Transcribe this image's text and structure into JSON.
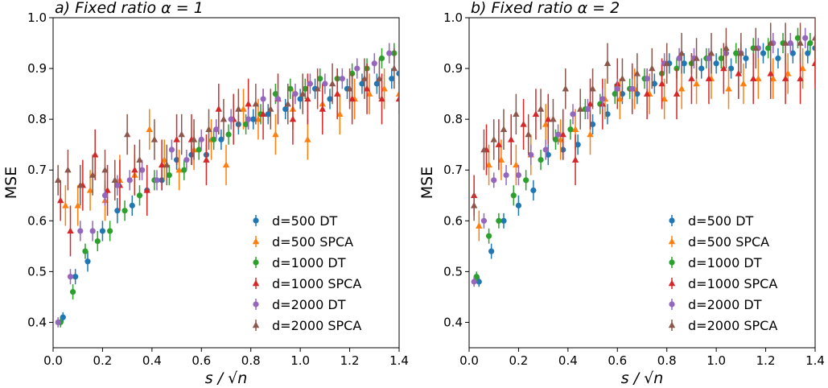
{
  "chart_data": [
    {
      "type": "scatter",
      "title": "a) Fixed ratio α = 1",
      "xlabel": "s / √n",
      "ylabel": "MSE",
      "xlim": [
        0.0,
        1.4
      ],
      "ylim": [
        0.35,
        1.0
      ],
      "xticks": [
        "0.0",
        "0.2",
        "0.4",
        "0.6",
        "0.8",
        "1.0",
        "1.2",
        "1.4"
      ],
      "yticks": [
        "0.4",
        "0.5",
        "0.6",
        "0.7",
        "0.8",
        "0.9",
        "1.0"
      ],
      "legend_position": "lower-right",
      "series": [
        {
          "name": "d=500 DT",
          "marker": "circle",
          "color": "#1f77b4",
          "x": [
            0.04,
            0.09,
            0.14,
            0.2,
            0.26,
            0.32,
            0.38,
            0.44,
            0.5,
            0.56,
            0.62,
            0.68,
            0.75,
            0.81,
            0.87,
            0.94,
            1.0,
            1.06,
            1.12,
            1.19,
            1.25,
            1.31,
            1.37,
            1.4
          ],
          "y": [
            0.41,
            0.49,
            0.52,
            0.58,
            0.62,
            0.63,
            0.66,
            0.68,
            0.72,
            0.73,
            0.73,
            0.76,
            0.79,
            0.8,
            0.81,
            0.82,
            0.84,
            0.86,
            0.84,
            0.86,
            0.87,
            0.87,
            0.88,
            0.89
          ],
          "err": [
            0.01,
            0.015,
            0.02,
            0.02,
            0.025,
            0.02,
            0.02,
            0.02,
            0.02,
            0.02,
            0.02,
            0.02,
            0.02,
            0.02,
            0.02,
            0.02,
            0.02,
            0.02,
            0.02,
            0.02,
            0.02,
            0.02,
            0.02,
            0.02
          ]
        },
        {
          "name": "d=500 SPCA",
          "marker": "triangle",
          "color": "#ff7f0e",
          "x": [
            0.05,
            0.1,
            0.15,
            0.21,
            0.27,
            0.33,
            0.39,
            0.45,
            0.51,
            0.57,
            0.64,
            0.7,
            0.77,
            0.83,
            0.9,
            0.97,
            1.03,
            1.09,
            1.16,
            1.22,
            1.28,
            1.34,
            1.4
          ],
          "y": [
            0.63,
            0.63,
            0.66,
            0.64,
            0.68,
            0.69,
            0.78,
            0.72,
            0.7,
            0.74,
            0.76,
            0.71,
            0.82,
            0.8,
            0.77,
            0.82,
            0.76,
            0.83,
            0.81,
            0.84,
            0.85,
            0.86,
            0.85
          ],
          "err": [
            0.04,
            0.04,
            0.04,
            0.04,
            0.05,
            0.04,
            0.04,
            0.04,
            0.04,
            0.04,
            0.04,
            0.04,
            0.04,
            0.04,
            0.04,
            0.04,
            0.04,
            0.04,
            0.04,
            0.04,
            0.04,
            0.04,
            0.04
          ]
        },
        {
          "name": "d=1000 DT",
          "marker": "circle",
          "color": "#2ca02c",
          "x": [
            0.03,
            0.08,
            0.13,
            0.18,
            0.23,
            0.29,
            0.35,
            0.41,
            0.47,
            0.53,
            0.59,
            0.65,
            0.71,
            0.78,
            0.84,
            0.9,
            0.96,
            1.02,
            1.08,
            1.15,
            1.21,
            1.27,
            1.33,
            1.38
          ],
          "y": [
            0.4,
            0.46,
            0.54,
            0.56,
            0.58,
            0.62,
            0.65,
            0.68,
            0.69,
            0.7,
            0.74,
            0.76,
            0.77,
            0.79,
            0.81,
            0.85,
            0.86,
            0.86,
            0.88,
            0.88,
            0.89,
            0.9,
            0.92,
            0.93
          ],
          "err": [
            0.01,
            0.015,
            0.015,
            0.02,
            0.02,
            0.02,
            0.02,
            0.02,
            0.02,
            0.02,
            0.02,
            0.02,
            0.02,
            0.02,
            0.02,
            0.02,
            0.02,
            0.02,
            0.02,
            0.02,
            0.02,
            0.02,
            0.02,
            0.02
          ]
        },
        {
          "name": "d=1000 SPCA",
          "marker": "triangle",
          "color": "#d62728",
          "x": [
            0.03,
            0.07,
            0.12,
            0.17,
            0.22,
            0.27,
            0.33,
            0.38,
            0.44,
            0.5,
            0.56,
            0.62,
            0.67,
            0.73,
            0.79,
            0.85,
            0.91,
            0.97,
            1.03,
            1.09,
            1.15,
            1.21,
            1.27,
            1.33,
            1.4
          ],
          "y": [
            0.64,
            0.58,
            0.67,
            0.73,
            0.66,
            0.67,
            0.7,
            0.66,
            0.71,
            0.76,
            0.76,
            0.72,
            0.82,
            0.8,
            0.83,
            0.81,
            0.84,
            0.8,
            0.84,
            0.82,
            0.85,
            0.84,
            0.86,
            0.84,
            0.84
          ],
          "err": [
            0.04,
            0.05,
            0.05,
            0.05,
            0.05,
            0.05,
            0.05,
            0.05,
            0.05,
            0.05,
            0.05,
            0.05,
            0.05,
            0.05,
            0.05,
            0.05,
            0.05,
            0.05,
            0.05,
            0.05,
            0.05,
            0.05,
            0.05,
            0.05,
            0.05
          ]
        },
        {
          "name": "d=2000 DT",
          "marker": "circle",
          "color": "#9467bd",
          "x": [
            0.02,
            0.07,
            0.11,
            0.16,
            0.21,
            0.26,
            0.31,
            0.36,
            0.42,
            0.48,
            0.54,
            0.6,
            0.66,
            0.72,
            0.79,
            0.85,
            0.91,
            0.98,
            1.04,
            1.1,
            1.17,
            1.23,
            1.3,
            1.36
          ],
          "y": [
            0.4,
            0.49,
            0.58,
            0.58,
            0.65,
            0.67,
            0.68,
            0.7,
            0.68,
            0.74,
            0.72,
            0.76,
            0.78,
            0.8,
            0.8,
            0.84,
            0.84,
            0.85,
            0.87,
            0.87,
            0.88,
            0.9,
            0.91,
            0.93
          ],
          "err": [
            0.01,
            0.015,
            0.02,
            0.02,
            0.02,
            0.02,
            0.02,
            0.02,
            0.02,
            0.02,
            0.02,
            0.02,
            0.02,
            0.02,
            0.02,
            0.02,
            0.02,
            0.02,
            0.02,
            0.02,
            0.02,
            0.02,
            0.02,
            0.02
          ]
        },
        {
          "name": "d=2000 SPCA",
          "marker": "triangle",
          "color": "#8c564b",
          "x": [
            0.02,
            0.06,
            0.11,
            0.16,
            0.21,
            0.25,
            0.3,
            0.35,
            0.41,
            0.46,
            0.52,
            0.57,
            0.63,
            0.69,
            0.75,
            0.82,
            0.88,
            0.95,
            1.01,
            1.07,
            1.13,
            1.2,
            1.26,
            1.32,
            1.38
          ],
          "y": [
            0.68,
            0.7,
            0.67,
            0.69,
            0.7,
            0.68,
            0.77,
            0.72,
            0.76,
            0.71,
            0.77,
            0.76,
            0.78,
            0.8,
            0.82,
            0.83,
            0.82,
            0.83,
            0.85,
            0.86,
            0.87,
            0.86,
            0.88,
            0.88,
            0.9
          ],
          "err": [
            0.03,
            0.04,
            0.04,
            0.04,
            0.04,
            0.04,
            0.04,
            0.04,
            0.04,
            0.04,
            0.04,
            0.04,
            0.04,
            0.04,
            0.04,
            0.04,
            0.04,
            0.04,
            0.04,
            0.04,
            0.04,
            0.04,
            0.04,
            0.04,
            0.04
          ]
        }
      ]
    },
    {
      "type": "scatter",
      "title": "b) Fixed ratio α = 2",
      "xlabel": "s / √n",
      "ylabel": "MSE",
      "xlim": [
        0.0,
        1.4
      ],
      "ylim": [
        0.35,
        1.0
      ],
      "xticks": [
        "0.0",
        "0.2",
        "0.4",
        "0.6",
        "0.8",
        "1.0",
        "1.2",
        "1.4"
      ],
      "yticks": [
        "0.4",
        "0.5",
        "0.6",
        "0.7",
        "0.8",
        "0.9",
        "1.0"
      ],
      "legend_position": "lower-right",
      "series": [
        {
          "name": "d=500 DT",
          "marker": "circle",
          "color": "#1f77b4",
          "x": [
            0.04,
            0.09,
            0.14,
            0.2,
            0.26,
            0.32,
            0.38,
            0.44,
            0.5,
            0.56,
            0.62,
            0.68,
            0.75,
            0.81,
            0.87,
            0.94,
            1.0,
            1.06,
            1.12,
            1.19,
            1.25,
            1.31,
            1.37,
            1.4
          ],
          "y": [
            0.48,
            0.54,
            0.6,
            0.63,
            0.66,
            0.73,
            0.74,
            0.75,
            0.79,
            0.81,
            0.85,
            0.85,
            0.87,
            0.91,
            0.91,
            0.9,
            0.91,
            0.9,
            0.92,
            0.93,
            0.92,
            0.93,
            0.93,
            0.94
          ],
          "err": [
            0.01,
            0.015,
            0.015,
            0.02,
            0.02,
            0.02,
            0.02,
            0.02,
            0.02,
            0.02,
            0.02,
            0.02,
            0.02,
            0.02,
            0.02,
            0.02,
            0.02,
            0.02,
            0.02,
            0.02,
            0.02,
            0.02,
            0.02,
            0.02
          ]
        },
        {
          "name": "d=500 SPCA",
          "marker": "triangle",
          "color": "#ff7f0e",
          "x": [
            0.04,
            0.08,
            0.13,
            0.19,
            0.25,
            0.31,
            0.37,
            0.43,
            0.49,
            0.55,
            0.61,
            0.67,
            0.73,
            0.79,
            0.86,
            0.92,
            0.98,
            1.05,
            1.11,
            1.17,
            1.23,
            1.29,
            1.35,
            1.4
          ],
          "y": [
            0.59,
            0.71,
            0.72,
            0.71,
            0.73,
            0.79,
            0.76,
            0.78,
            0.77,
            0.84,
            0.84,
            0.86,
            0.85,
            0.84,
            0.86,
            0.87,
            0.88,
            0.86,
            0.87,
            0.88,
            0.88,
            0.89,
            0.9,
            0.91
          ],
          "err": [
            0.03,
            0.04,
            0.04,
            0.04,
            0.04,
            0.04,
            0.04,
            0.04,
            0.04,
            0.04,
            0.04,
            0.04,
            0.04,
            0.04,
            0.04,
            0.04,
            0.04,
            0.04,
            0.04,
            0.04,
            0.04,
            0.04,
            0.04,
            0.04
          ]
        },
        {
          "name": "d=1000 DT",
          "marker": "circle",
          "color": "#2ca02c",
          "x": [
            0.03,
            0.08,
            0.12,
            0.18,
            0.23,
            0.29,
            0.35,
            0.41,
            0.47,
            0.53,
            0.59,
            0.65,
            0.71,
            0.78,
            0.84,
            0.9,
            0.96,
            1.02,
            1.08,
            1.15,
            1.21,
            1.27,
            1.33,
            1.38
          ],
          "y": [
            0.49,
            0.57,
            0.6,
            0.65,
            0.68,
            0.72,
            0.76,
            0.78,
            0.82,
            0.83,
            0.85,
            0.86,
            0.88,
            0.89,
            0.9,
            0.91,
            0.92,
            0.92,
            0.93,
            0.94,
            0.94,
            0.95,
            0.96,
            0.95
          ],
          "err": [
            0.01,
            0.015,
            0.015,
            0.02,
            0.02,
            0.02,
            0.02,
            0.02,
            0.02,
            0.02,
            0.02,
            0.02,
            0.02,
            0.02,
            0.02,
            0.02,
            0.02,
            0.02,
            0.02,
            0.02,
            0.02,
            0.02,
            0.02,
            0.02
          ]
        },
        {
          "name": "d=1000 SPCA",
          "marker": "triangle",
          "color": "#d62728",
          "x": [
            0.02,
            0.07,
            0.12,
            0.17,
            0.22,
            0.27,
            0.32,
            0.38,
            0.43,
            0.49,
            0.54,
            0.6,
            0.66,
            0.72,
            0.78,
            0.84,
            0.9,
            0.97,
            1.03,
            1.09,
            1.15,
            1.22,
            1.28,
            1.34,
            1.4
          ],
          "y": [
            0.65,
            0.74,
            0.75,
            0.76,
            0.79,
            0.81,
            0.8,
            0.77,
            0.72,
            0.83,
            0.83,
            0.87,
            0.86,
            0.85,
            0.87,
            0.85,
            0.88,
            0.88,
            0.9,
            0.89,
            0.88,
            0.89,
            0.88,
            0.88,
            0.91
          ],
          "err": [
            0.04,
            0.05,
            0.05,
            0.05,
            0.05,
            0.05,
            0.05,
            0.05,
            0.05,
            0.05,
            0.05,
            0.05,
            0.05,
            0.05,
            0.05,
            0.05,
            0.05,
            0.05,
            0.05,
            0.05,
            0.05,
            0.05,
            0.05,
            0.05,
            0.05
          ]
        },
        {
          "name": "d=2000 DT",
          "marker": "circle",
          "color": "#9467bd",
          "x": [
            0.02,
            0.06,
            0.1,
            0.15,
            0.2,
            0.25,
            0.31,
            0.36,
            0.42,
            0.48,
            0.54,
            0.6,
            0.66,
            0.72,
            0.79,
            0.85,
            0.91,
            0.97,
            1.04,
            1.1,
            1.17,
            1.23,
            1.3,
            1.36
          ],
          "y": [
            0.48,
            0.6,
            0.68,
            0.69,
            0.69,
            0.73,
            0.74,
            0.77,
            0.81,
            0.82,
            0.84,
            0.86,
            0.86,
            0.88,
            0.91,
            0.92,
            0.92,
            0.92,
            0.93,
            0.93,
            0.94,
            0.95,
            0.95,
            0.96
          ],
          "err": [
            0.01,
            0.015,
            0.015,
            0.02,
            0.02,
            0.02,
            0.02,
            0.02,
            0.02,
            0.02,
            0.02,
            0.02,
            0.02,
            0.02,
            0.02,
            0.02,
            0.02,
            0.02,
            0.02,
            0.02,
            0.02,
            0.02,
            0.02,
            0.02
          ]
        },
        {
          "name": "d=2000 SPCA",
          "marker": "triangle",
          "color": "#8c564b",
          "x": [
            0.02,
            0.06,
            0.1,
            0.14,
            0.19,
            0.24,
            0.29,
            0.34,
            0.39,
            0.45,
            0.5,
            0.56,
            0.62,
            0.68,
            0.74,
            0.8,
            0.86,
            0.92,
            0.98,
            1.04,
            1.1,
            1.16,
            1.22,
            1.28,
            1.34,
            1.4
          ],
          "y": [
            0.63,
            0.74,
            0.76,
            0.78,
            0.81,
            0.77,
            0.82,
            0.8,
            0.86,
            0.82,
            0.86,
            0.91,
            0.88,
            0.89,
            0.9,
            0.91,
            0.93,
            0.92,
            0.93,
            0.94,
            0.93,
            0.94,
            0.95,
            0.95,
            0.95,
            0.96
          ],
          "err": [
            0.03,
            0.04,
            0.04,
            0.04,
            0.04,
            0.04,
            0.04,
            0.04,
            0.04,
            0.04,
            0.04,
            0.04,
            0.04,
            0.04,
            0.04,
            0.04,
            0.04,
            0.04,
            0.04,
            0.04,
            0.04,
            0.04,
            0.04,
            0.04,
            0.04,
            0.04
          ]
        }
      ]
    }
  ]
}
